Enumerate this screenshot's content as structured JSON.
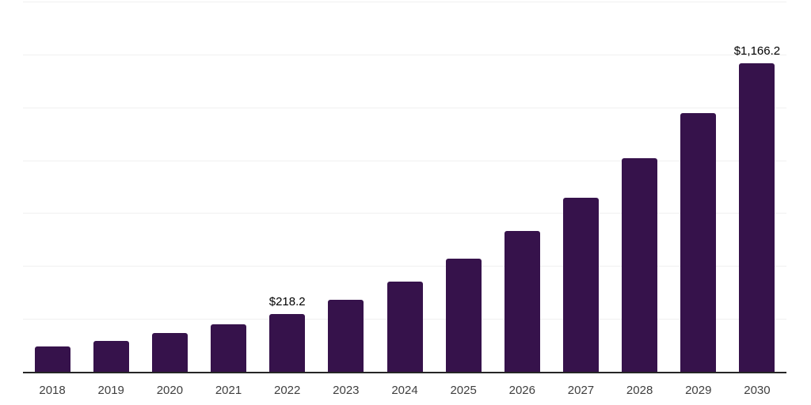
{
  "chart_data": {
    "type": "bar",
    "title": "",
    "xlabel": "",
    "ylabel": "",
    "categories": [
      "2018",
      "2019",
      "2020",
      "2021",
      "2022",
      "2023",
      "2024",
      "2025",
      "2026",
      "2027",
      "2028",
      "2029",
      "2030"
    ],
    "values": [
      96.0,
      117.5,
      146.0,
      178.4,
      218.2,
      271.3,
      341.0,
      428.7,
      532.5,
      658.1,
      807.7,
      978.2,
      1166.2
    ],
    "data_labels": {
      "2022": "$218.2",
      "2030": "$1,166.2"
    },
    "ylim": [
      0,
      1400
    ],
    "gridline_step": 200,
    "grid": "horizontal-only",
    "legend": "none",
    "colors": {
      "bar": "#36124B",
      "gridline": "#f0f0f0",
      "axis_line": "#262626",
      "tick_label": "#3f3f3f",
      "data_label": "#000000",
      "background": "#ffffff"
    }
  }
}
